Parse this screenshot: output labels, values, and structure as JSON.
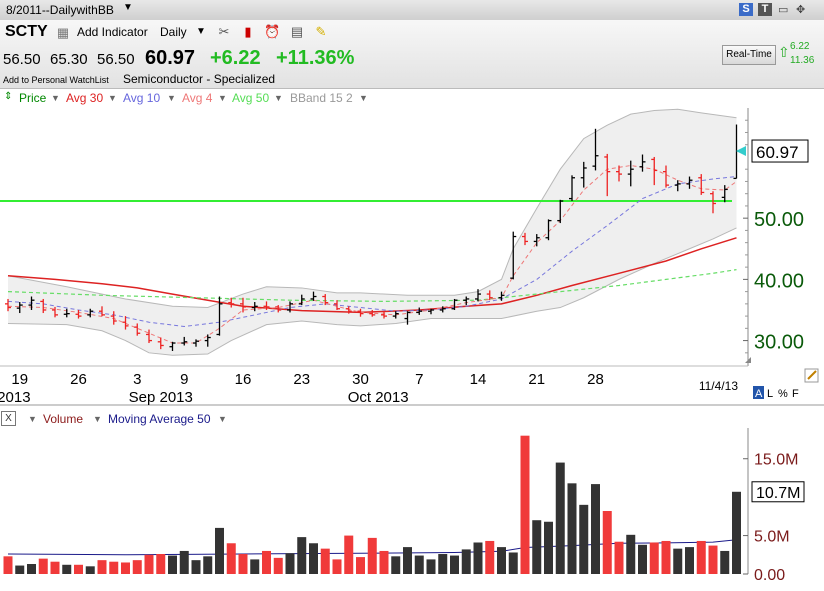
{
  "window": {
    "title": "8/2011--DailywithBB",
    "controls": [
      "S",
      "T",
      "▭",
      "✥"
    ]
  },
  "header": {
    "symbol": "SCTY",
    "add_indicator": "Add Indicator",
    "period": "Daily",
    "open": "56.50",
    "high": "65.30",
    "low": "56.50",
    "last": "60.97",
    "change": "+6.22",
    "change_pct": "+11.36%",
    "watchlist": "Add to Personal WatchList",
    "industry": "Semiconductor - Specialized",
    "realtime_label": "Real-Time",
    "realtime_change": "6.22",
    "realtime_pct": "11.36",
    "icons": [
      "tools-icon",
      "chart-style-icon",
      "alarm-icon",
      "settings-icon",
      "note-icon"
    ]
  },
  "overlays": [
    {
      "label": "Price",
      "color": "#008800"
    },
    {
      "label": "Avg 30",
      "color": "#dd2222"
    },
    {
      "label": "Avg 10",
      "color": "#6666dd"
    },
    {
      "label": "Avg 4",
      "color": "#ee7777"
    },
    {
      "label": "Avg 50",
      "color": "#55dd55"
    },
    {
      "label": "BBand 15 2",
      "color": "#999999"
    }
  ],
  "volume_header": {
    "close": "X",
    "volume": "Volume",
    "ma": "Moving Average 50"
  },
  "price_scale_labels": {
    "A": "A",
    "L": "L",
    "pct": "%",
    "F": "F"
  },
  "last_price_tag": "60.97",
  "volume_tag": "10.7M",
  "chart_data": {
    "type": "ohlc",
    "price_axis": {
      "ylim": [
        26.5,
        68.0
      ],
      "ticks": [
        30,
        40,
        50
      ],
      "tick_labels": [
        "30.00",
        "40.00",
        "50.00"
      ]
    },
    "volume_axis": {
      "ylim": [
        0,
        19000000
      ],
      "ticks": [
        0,
        5000000,
        15000000
      ],
      "tick_labels": [
        "0.00",
        "5.0M",
        "15.0M"
      ]
    },
    "date_ticks": [
      {
        "i": 1,
        "label": "19"
      },
      {
        "i": 6,
        "label": "26"
      },
      {
        "i": 11,
        "label": "3"
      },
      {
        "i": 15,
        "label": "9"
      },
      {
        "i": 20,
        "label": "16"
      },
      {
        "i": 25,
        "label": "23"
      },
      {
        "i": 30,
        "label": "30"
      },
      {
        "i": 35,
        "label": "7"
      },
      {
        "i": 40,
        "label": "14"
      },
      {
        "i": 45,
        "label": "21"
      },
      {
        "i": 50,
        "label": "28"
      }
    ],
    "month_labels": [
      {
        "i": 0.5,
        "label": "2013"
      },
      {
        "i": 13,
        "label": "Sep 2013"
      },
      {
        "i": 31.5,
        "label": "Oct 2013"
      }
    ],
    "end_date": "11/4/13",
    "horizontal_line": 52.8,
    "bars": [
      {
        "o": 36.0,
        "h": 36.8,
        "l": 34.8,
        "c": 35.4,
        "v": 2300000
      },
      {
        "o": 35.3,
        "h": 36.3,
        "l": 34.5,
        "c": 35.8,
        "v": 1100000
      },
      {
        "o": 35.8,
        "h": 37.2,
        "l": 35.0,
        "c": 36.6,
        "v": 1300000
      },
      {
        "o": 36.4,
        "h": 36.8,
        "l": 34.5,
        "c": 35.0,
        "v": 2000000
      },
      {
        "o": 35.0,
        "h": 35.5,
        "l": 33.8,
        "c": 34.2,
        "v": 1600000
      },
      {
        "o": 34.3,
        "h": 35.2,
        "l": 33.8,
        "c": 34.4,
        "v": 1200000
      },
      {
        "o": 34.3,
        "h": 35.0,
        "l": 33.6,
        "c": 34.0,
        "v": 1200000
      },
      {
        "o": 34.2,
        "h": 35.2,
        "l": 33.8,
        "c": 34.8,
        "v": 1000000
      },
      {
        "o": 34.8,
        "h": 35.6,
        "l": 34.0,
        "c": 34.2,
        "v": 1800000
      },
      {
        "o": 34.0,
        "h": 34.8,
        "l": 32.6,
        "c": 33.2,
        "v": 1600000
      },
      {
        "o": 33.0,
        "h": 34.0,
        "l": 31.8,
        "c": 32.4,
        "v": 1500000
      },
      {
        "o": 32.2,
        "h": 32.8,
        "l": 30.8,
        "c": 31.2,
        "v": 1800000
      },
      {
        "o": 31.0,
        "h": 31.8,
        "l": 29.6,
        "c": 30.0,
        "v": 2500000
      },
      {
        "o": 29.8,
        "h": 30.5,
        "l": 28.6,
        "c": 29.2,
        "v": 2600000
      },
      {
        "o": 29.0,
        "h": 29.8,
        "l": 28.3,
        "c": 29.6,
        "v": 2400000
      },
      {
        "o": 29.6,
        "h": 30.6,
        "l": 29.2,
        "c": 29.8,
        "v": 3000000
      },
      {
        "o": 29.6,
        "h": 30.2,
        "l": 29.0,
        "c": 29.9,
        "v": 1800000
      },
      {
        "o": 30.0,
        "h": 31.0,
        "l": 29.0,
        "c": 30.5,
        "v": 2300000
      },
      {
        "o": 31.0,
        "h": 37.2,
        "l": 30.8,
        "c": 36.0,
        "v": 6000000
      },
      {
        "o": 36.2,
        "h": 37.0,
        "l": 35.4,
        "c": 36.0,
        "v": 4000000
      },
      {
        "o": 36.0,
        "h": 37.0,
        "l": 34.6,
        "c": 35.5,
        "v": 2600000
      },
      {
        "o": 35.4,
        "h": 36.3,
        "l": 34.8,
        "c": 35.6,
        "v": 1900000
      },
      {
        "o": 35.6,
        "h": 36.4,
        "l": 35.0,
        "c": 35.5,
        "v": 3000000
      },
      {
        "o": 35.5,
        "h": 35.8,
        "l": 34.6,
        "c": 35.0,
        "v": 2100000
      },
      {
        "o": 35.0,
        "h": 36.4,
        "l": 34.6,
        "c": 36.0,
        "v": 2700000
      },
      {
        "o": 36.0,
        "h": 37.5,
        "l": 35.8,
        "c": 36.8,
        "v": 4800000
      },
      {
        "o": 36.8,
        "h": 38.0,
        "l": 36.5,
        "c": 37.2,
        "v": 4000000
      },
      {
        "o": 37.2,
        "h": 37.6,
        "l": 35.8,
        "c": 36.2,
        "v": 3300000
      },
      {
        "o": 36.0,
        "h": 36.6,
        "l": 35.0,
        "c": 35.2,
        "v": 1900000
      },
      {
        "o": 35.2,
        "h": 35.6,
        "l": 34.4,
        "c": 34.8,
        "v": 5000000
      },
      {
        "o": 34.8,
        "h": 35.2,
        "l": 33.9,
        "c": 34.4,
        "v": 2200000
      },
      {
        "o": 34.4,
        "h": 35.0,
        "l": 33.9,
        "c": 34.2,
        "v": 4700000
      },
      {
        "o": 34.2,
        "h": 34.8,
        "l": 33.6,
        "c": 34.0,
        "v": 3000000
      },
      {
        "o": 34.0,
        "h": 34.8,
        "l": 33.6,
        "c": 34.4,
        "v": 2300000
      },
      {
        "o": 33.6,
        "h": 34.8,
        "l": 32.6,
        "c": 34.6,
        "v": 3500000
      },
      {
        "o": 34.6,
        "h": 35.4,
        "l": 34.2,
        "c": 34.8,
        "v": 2400000
      },
      {
        "o": 34.8,
        "h": 35.2,
        "l": 34.3,
        "c": 35.0,
        "v": 1900000
      },
      {
        "o": 35.0,
        "h": 35.6,
        "l": 34.6,
        "c": 35.2,
        "v": 2600000
      },
      {
        "o": 35.2,
        "h": 36.8,
        "l": 35.0,
        "c": 36.6,
        "v": 2400000
      },
      {
        "o": 36.6,
        "h": 37.2,
        "l": 35.8,
        "c": 36.8,
        "v": 3200000
      },
      {
        "o": 36.8,
        "h": 38.4,
        "l": 36.4,
        "c": 37.6,
        "v": 4100000
      },
      {
        "o": 37.6,
        "h": 38.2,
        "l": 36.6,
        "c": 37.0,
        "v": 4300000
      },
      {
        "o": 37.0,
        "h": 38.0,
        "l": 36.5,
        "c": 37.4,
        "v": 3500000
      },
      {
        "o": 40.2,
        "h": 47.8,
        "l": 40.0,
        "c": 47.0,
        "v": 2800000
      },
      {
        "o": 47.0,
        "h": 47.6,
        "l": 45.6,
        "c": 46.2,
        "v": 18000000
      },
      {
        "o": 46.2,
        "h": 47.4,
        "l": 45.4,
        "c": 46.8,
        "v": 7000000
      },
      {
        "o": 46.8,
        "h": 49.8,
        "l": 46.4,
        "c": 49.6,
        "v": 6800000
      },
      {
        "o": 49.6,
        "h": 53.0,
        "l": 49.2,
        "c": 52.8,
        "v": 14500000
      },
      {
        "o": 53.2,
        "h": 57.0,
        "l": 52.8,
        "c": 56.6,
        "v": 11800000
      },
      {
        "o": 56.6,
        "h": 59.2,
        "l": 55.0,
        "c": 58.2,
        "v": 9000000
      },
      {
        "o": 58.5,
        "h": 64.6,
        "l": 57.8,
        "c": 60.2,
        "v": 11700000
      },
      {
        "o": 60.0,
        "h": 60.5,
        "l": 53.6,
        "c": 57.6,
        "v": 8200000
      },
      {
        "o": 57.6,
        "h": 58.6,
        "l": 56.0,
        "c": 57.2,
        "v": 4200000
      },
      {
        "o": 57.2,
        "h": 59.4,
        "l": 55.2,
        "c": 58.0,
        "v": 5100000
      },
      {
        "o": 58.4,
        "h": 60.4,
        "l": 57.6,
        "c": 59.2,
        "v": 3800000
      },
      {
        "o": 59.6,
        "h": 60.0,
        "l": 55.4,
        "c": 57.8,
        "v": 4100000
      },
      {
        "o": 57.6,
        "h": 58.6,
        "l": 55.0,
        "c": 55.4,
        "v": 4300000
      },
      {
        "o": 55.4,
        "h": 56.2,
        "l": 54.4,
        "c": 55.6,
        "v": 3300000
      },
      {
        "o": 55.6,
        "h": 56.8,
        "l": 54.8,
        "c": 56.2,
        "v": 3500000
      },
      {
        "o": 56.6,
        "h": 57.2,
        "l": 53.8,
        "c": 54.2,
        "v": 4300000
      },
      {
        "o": 54.0,
        "h": 54.4,
        "l": 50.8,
        "c": 52.4,
        "v": 3700000
      },
      {
        "o": 53.4,
        "h": 55.4,
        "l": 52.6,
        "c": 54.7,
        "v": 3000000
      },
      {
        "o": 56.5,
        "h": 65.3,
        "l": 56.5,
        "c": 60.97,
        "v": 10700000
      }
    ],
    "series": [
      {
        "name": "Avg 30",
        "color": "#dd2222",
        "width": 1.5,
        "dash": "",
        "points": [
          [
            0,
            40.6
          ],
          [
            4,
            40.0
          ],
          [
            8,
            39.3
          ],
          [
            11,
            38.6
          ],
          [
            14,
            37.6
          ],
          [
            17,
            36.6
          ],
          [
            20,
            35.6
          ],
          [
            25,
            34.9
          ],
          [
            30,
            34.6
          ],
          [
            35,
            35.0
          ],
          [
            39,
            35.6
          ],
          [
            42,
            36.0
          ],
          [
            45,
            37.4
          ],
          [
            48,
            39.0
          ],
          [
            52,
            41.0
          ],
          [
            56,
            43.0
          ],
          [
            59,
            45.0
          ],
          [
            62,
            46.8
          ]
        ]
      },
      {
        "name": "Avg 50",
        "color": "#66dd66",
        "width": 1.2,
        "dash": "4,3",
        "points": [
          [
            0,
            38.0
          ],
          [
            8,
            37.4
          ],
          [
            16,
            37.0
          ],
          [
            24,
            36.6
          ],
          [
            32,
            36.4
          ],
          [
            40,
            36.6
          ],
          [
            44,
            37.4
          ],
          [
            48,
            38.2
          ],
          [
            52,
            39.0
          ],
          [
            56,
            40.0
          ],
          [
            60,
            41.0
          ],
          [
            62,
            41.6
          ]
        ]
      },
      {
        "name": "Avg 10",
        "color": "#7777dd",
        "width": 1,
        "dash": "4,3",
        "points": [
          [
            0,
            36.4
          ],
          [
            3,
            36.0
          ],
          [
            6,
            35.0
          ],
          [
            9,
            34.2
          ],
          [
            12,
            33.0
          ],
          [
            15,
            32.3
          ],
          [
            18,
            33.0
          ],
          [
            21,
            34.2
          ],
          [
            24,
            35.4
          ],
          [
            27,
            36.0
          ],
          [
            30,
            35.4
          ],
          [
            33,
            34.8
          ],
          [
            36,
            35.0
          ],
          [
            39,
            35.6
          ],
          [
            42,
            36.8
          ],
          [
            45,
            40.0
          ],
          [
            48,
            44.6
          ],
          [
            51,
            48.8
          ],
          [
            54,
            53.2
          ],
          [
            57,
            55.6
          ],
          [
            60,
            56.4
          ],
          [
            62,
            56.8
          ]
        ]
      },
      {
        "name": "Avg 4",
        "color": "#ee7777",
        "width": 1,
        "dash": "4,3",
        "points": [
          [
            0,
            35.6
          ],
          [
            3,
            35.4
          ],
          [
            6,
            34.6
          ],
          [
            9,
            33.6
          ],
          [
            12,
            31.2
          ],
          [
            14,
            29.6
          ],
          [
            16,
            29.6
          ],
          [
            18,
            32.0
          ],
          [
            20,
            35.0
          ],
          [
            23,
            35.4
          ],
          [
            26,
            36.6
          ],
          [
            28,
            35.6
          ],
          [
            30,
            34.6
          ],
          [
            33,
            34.2
          ],
          [
            36,
            35.0
          ],
          [
            39,
            36.2
          ],
          [
            42,
            37.0
          ],
          [
            43,
            40.6
          ],
          [
            45,
            46.0
          ],
          [
            47,
            49.6
          ],
          [
            49,
            54.6
          ],
          [
            51,
            58.0
          ],
          [
            53,
            58.6
          ],
          [
            55,
            58.0
          ],
          [
            57,
            56.2
          ],
          [
            59,
            54.8
          ],
          [
            61,
            54.6
          ],
          [
            62,
            56.0
          ]
        ]
      },
      {
        "name": "Volume Moving Average 50",
        "pane": "volume",
        "color": "#1a1a8a",
        "width": 1,
        "dash": "",
        "points": [
          [
            0,
            2600000
          ],
          [
            10,
            2500000
          ],
          [
            20,
            2600000
          ],
          [
            30,
            2700000
          ],
          [
            38,
            2800000
          ],
          [
            42,
            2950000
          ],
          [
            44,
            3450000
          ],
          [
            48,
            3700000
          ],
          [
            52,
            4000000
          ],
          [
            56,
            4050000
          ],
          [
            60,
            4150000
          ],
          [
            62,
            4450000
          ]
        ]
      }
    ],
    "bollinger_upper": [
      [
        0,
        40.6
      ],
      [
        5,
        38.8
      ],
      [
        10,
        36.8
      ],
      [
        14,
        35.6
      ],
      [
        17,
        35.4
      ],
      [
        20,
        37.6
      ],
      [
        22,
        38.8
      ],
      [
        25,
        38.6
      ],
      [
        28,
        37.8
      ],
      [
        30,
        37.8
      ],
      [
        34,
        37.4
      ],
      [
        38,
        37.4
      ],
      [
        40,
        38.0
      ],
      [
        42,
        40.0
      ],
      [
        43,
        45.0
      ],
      [
        45,
        51.6
      ],
      [
        47,
        58.0
      ],
      [
        49,
        63.0
      ],
      [
        51,
        65.2
      ],
      [
        53,
        67.0
      ],
      [
        55,
        67.6
      ],
      [
        57,
        67.8
      ],
      [
        59,
        67.2
      ],
      [
        62,
        66.4
      ]
    ],
    "bollinger_lower": [
      [
        0,
        32.8
      ],
      [
        5,
        32.6
      ],
      [
        8,
        31.6
      ],
      [
        10,
        30.0
      ],
      [
        12,
        28.0
      ],
      [
        14,
        27.6
      ],
      [
        17,
        27.8
      ],
      [
        19,
        30.0
      ],
      [
        22,
        32.6
      ],
      [
        25,
        33.2
      ],
      [
        28,
        32.6
      ],
      [
        30,
        32.4
      ],
      [
        33,
        32.8
      ],
      [
        36,
        33.6
      ],
      [
        39,
        33.6
      ],
      [
        42,
        33.6
      ],
      [
        45,
        34.8
      ],
      [
        47,
        35.4
      ],
      [
        49,
        37.0
      ],
      [
        52,
        40.0
      ],
      [
        55,
        42.6
      ],
      [
        58,
        45.0
      ],
      [
        60,
        46.6
      ],
      [
        62,
        48.4
      ]
    ]
  }
}
